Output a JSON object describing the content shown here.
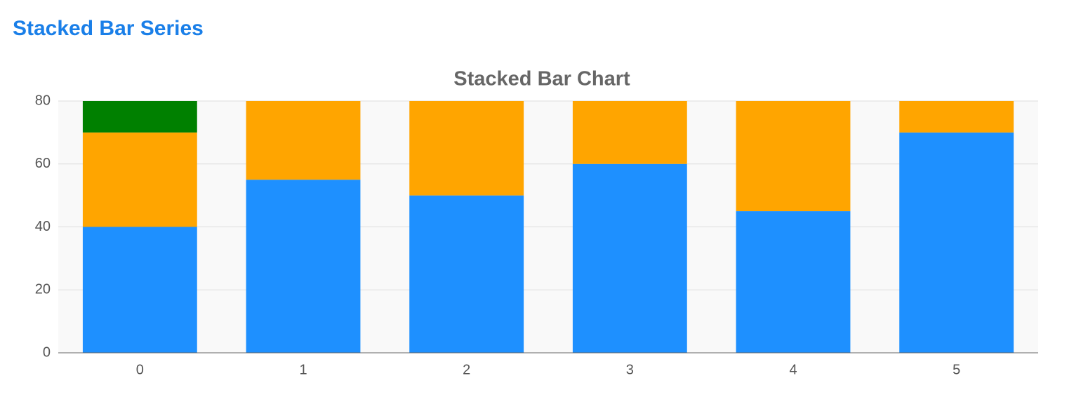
{
  "header": {
    "title": "Stacked Bar Series"
  },
  "chart_data": {
    "type": "stacked-bar",
    "title": "Stacked Bar Chart",
    "categories": [
      "0",
      "1",
      "2",
      "3",
      "4",
      "5"
    ],
    "series": [
      {
        "color": "#1e90ff",
        "values": [
          40,
          55,
          50,
          60,
          45,
          70
        ]
      },
      {
        "color": "#ffa500",
        "values": [
          30,
          25,
          30,
          20,
          35,
          10
        ]
      },
      {
        "color": "#008000",
        "values": [
          10,
          0,
          0,
          0,
          0,
          0
        ]
      }
    ],
    "ylim": [
      0,
      80
    ],
    "yticks": [
      0,
      20,
      40,
      60,
      80
    ],
    "grid": true
  }
}
